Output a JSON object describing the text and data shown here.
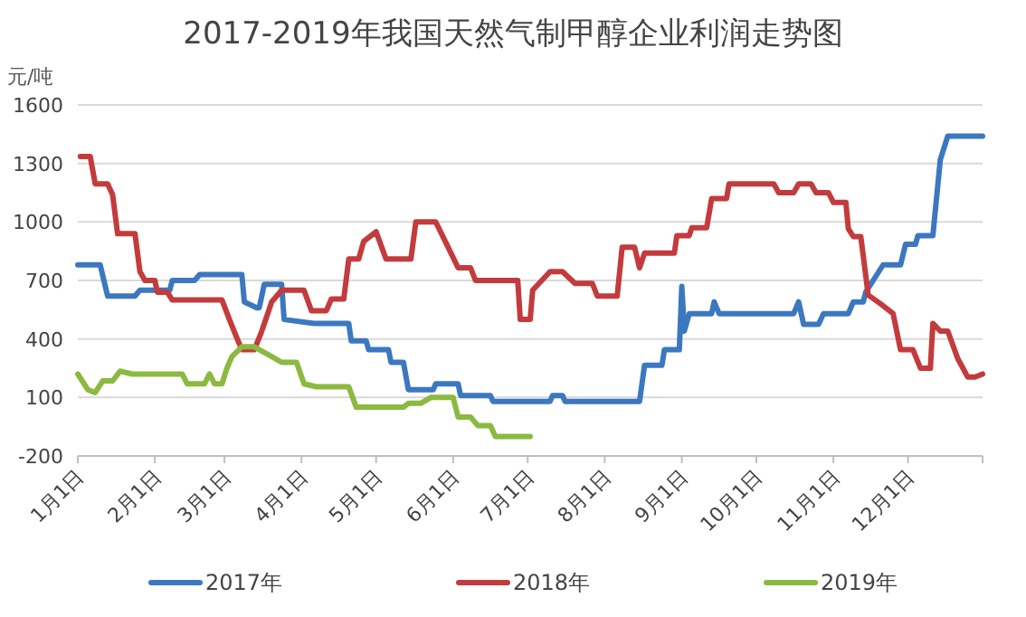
{
  "chart_data": {
    "type": "line",
    "title": "2017-2019年我国天然气制甲醇企业利润走势图",
    "ylabel": "元/吨",
    "xlim": [
      "--01-01",
      "--12-31"
    ],
    "xticks": [
      {
        "value": "--01-01",
        "label": "1月1日"
      },
      {
        "value": "--02-01",
        "label": "2月1日"
      },
      {
        "value": "--03-01",
        "label": "3月1日"
      },
      {
        "value": "--04-01",
        "label": "4月1日"
      },
      {
        "value": "--05-01",
        "label": "5月1日"
      },
      {
        "value": "--06-01",
        "label": "6月1日"
      },
      {
        "value": "--07-01",
        "label": "7月1日"
      },
      {
        "value": "--08-01",
        "label": "8月1日"
      },
      {
        "value": "--09-01",
        "label": "9月1日"
      },
      {
        "value": "--10-01",
        "label": "10月1日"
      },
      {
        "value": "--11-01",
        "label": "11月1日"
      },
      {
        "value": "--12-01",
        "label": "12月1日"
      }
    ],
    "ylim": [
      -200,
      1600
    ],
    "yticks": [
      -200,
      100,
      400,
      700,
      1000,
      1300,
      1600
    ],
    "grid": "y",
    "legend": "bottom",
    "series": [
      {
        "name": "2017年",
        "color": "#3c78c0",
        "x": [
          "--01-01",
          "--01-10",
          "--01-13",
          "--01-24",
          "--01-26",
          "--02-07",
          "--02-08",
          "--02-17",
          "--02-19",
          "--03-08",
          "--03-09",
          "--03-14",
          "--03-15",
          "--03-17",
          "--03-24",
          "--03-25",
          "--04-06",
          "--04-20",
          "--04-21",
          "--04-27",
          "--04-28",
          "--05-06",
          "--05-07",
          "--05-12",
          "--05-14",
          "--05-24",
          "--05-25",
          "--06-03",
          "--06-04",
          "--06-16",
          "--06-17",
          "--07-10",
          "--07-11",
          "--07-15",
          "--07-16",
          "--08-15",
          "--08-17",
          "--08-24",
          "--08-25",
          "--08-31",
          "--09-01",
          "--09-02",
          "--09-04",
          "--09-13",
          "--09-14",
          "--09-16",
          "--10-16",
          "--10-18",
          "--10-20",
          "--10-26",
          "--10-28",
          "--11-07",
          "--11-09",
          "--11-13",
          "--11-14",
          "--11-21",
          "--11-28",
          "--11-30",
          "--12-04",
          "--12-05",
          "--12-11",
          "--12-14",
          "--12-17",
          "--12-31"
        ],
        "values": [
          780,
          780,
          620,
          620,
          650,
          650,
          700,
          700,
          730,
          730,
          590,
          560,
          560,
          680,
          680,
          500,
          480,
          480,
          390,
          390,
          345,
          345,
          280,
          280,
          140,
          140,
          170,
          170,
          110,
          110,
          80,
          80,
          110,
          110,
          80,
          80,
          265,
          265,
          345,
          345,
          670,
          440,
          530,
          530,
          590,
          530,
          530,
          590,
          475,
          475,
          530,
          530,
          590,
          590,
          640,
          780,
          780,
          885,
          885,
          930,
          930,
          1320,
          1440,
          1440
        ]
      },
      {
        "name": "2018年",
        "color": "#c33b3c",
        "x": [
          "--01-02",
          "--01-06",
          "--01-08",
          "--01-13",
          "--01-15",
          "--01-17",
          "--01-24",
          "--01-26",
          "--01-28",
          "--02-01",
          "--02-02",
          "--02-06",
          "--02-08",
          "--02-28",
          "--03-03",
          "--03-06",
          "--03-08",
          "--03-13",
          "--03-16",
          "--03-20",
          "--03-24",
          "--04-02",
          "--04-05",
          "--04-11",
          "--04-13",
          "--04-18",
          "--04-20",
          "--04-24",
          "--04-26",
          "--05-01",
          "--05-05",
          "--05-15",
          "--05-17",
          "--05-25",
          "--05-30",
          "--06-03",
          "--06-08",
          "--06-10",
          "--06-27",
          "--06-28",
          "--07-02",
          "--07-03",
          "--07-10",
          "--07-15",
          "--07-20",
          "--07-27",
          "--07-29",
          "--08-06",
          "--08-08",
          "--08-13",
          "--08-15",
          "--08-17",
          "--08-29",
          "--08-30",
          "--09-04",
          "--09-05",
          "--09-11",
          "--09-13",
          "--09-19",
          "--09-20",
          "--10-08",
          "--10-10",
          "--10-16",
          "--10-18",
          "--10-23",
          "--10-25",
          "--10-30",
          "--11-01",
          "--11-06",
          "--11-07",
          "--11-09",
          "--11-12",
          "--11-15",
          "--11-20",
          "--11-25",
          "--11-28",
          "--12-03",
          "--12-06",
          "--12-10",
          "--12-11",
          "--12-14",
          "--12-17",
          "--12-21",
          "--12-25",
          "--12-28",
          "--12-31"
        ],
        "values": [
          1335,
          1335,
          1195,
          1195,
          1140,
          940,
          940,
          745,
          700,
          700,
          640,
          640,
          600,
          600,
          500,
          405,
          345,
          345,
          440,
          590,
          650,
          650,
          545,
          545,
          605,
          605,
          810,
          810,
          900,
          950,
          810,
          810,
          1000,
          1000,
          870,
          765,
          765,
          700,
          700,
          500,
          500,
          650,
          745,
          745,
          685,
          685,
          620,
          620,
          870,
          870,
          765,
          840,
          840,
          930,
          930,
          970,
          970,
          1120,
          1120,
          1195,
          1195,
          1150,
          1150,
          1195,
          1195,
          1150,
          1150,
          1100,
          1100,
          965,
          925,
          925,
          625,
          580,
          530,
          345,
          345,
          250,
          250,
          480,
          440,
          440,
          300,
          205,
          205,
          220
        ]
      },
      {
        "name": "2019年",
        "color": "#8cb940",
        "x": [
          "--01-01",
          "--01-05",
          "--01-08",
          "--01-11",
          "--01-15",
          "--01-18",
          "--01-23",
          "--02-12",
          "--02-14",
          "--02-21",
          "--02-23",
          "--02-25",
          "--02-28",
          "--03-02",
          "--03-04",
          "--03-08",
          "--03-13",
          "--03-20",
          "--03-24",
          "--03-30",
          "--04-02",
          "--04-07",
          "--04-20",
          "--04-23",
          "--05-12",
          "--05-14",
          "--05-19",
          "--05-23",
          "--06-01",
          "--06-03",
          "--06-08",
          "--06-11",
          "--06-16",
          "--06-18",
          "--07-02"
        ],
        "values": [
          220,
          140,
          125,
          185,
          185,
          235,
          220,
          220,
          170,
          170,
          220,
          170,
          170,
          250,
          310,
          360,
          360,
          310,
          280,
          280,
          170,
          155,
          155,
          50,
          50,
          70,
          70,
          100,
          100,
          0,
          0,
          -45,
          -45,
          -100,
          -100
        ]
      }
    ]
  }
}
